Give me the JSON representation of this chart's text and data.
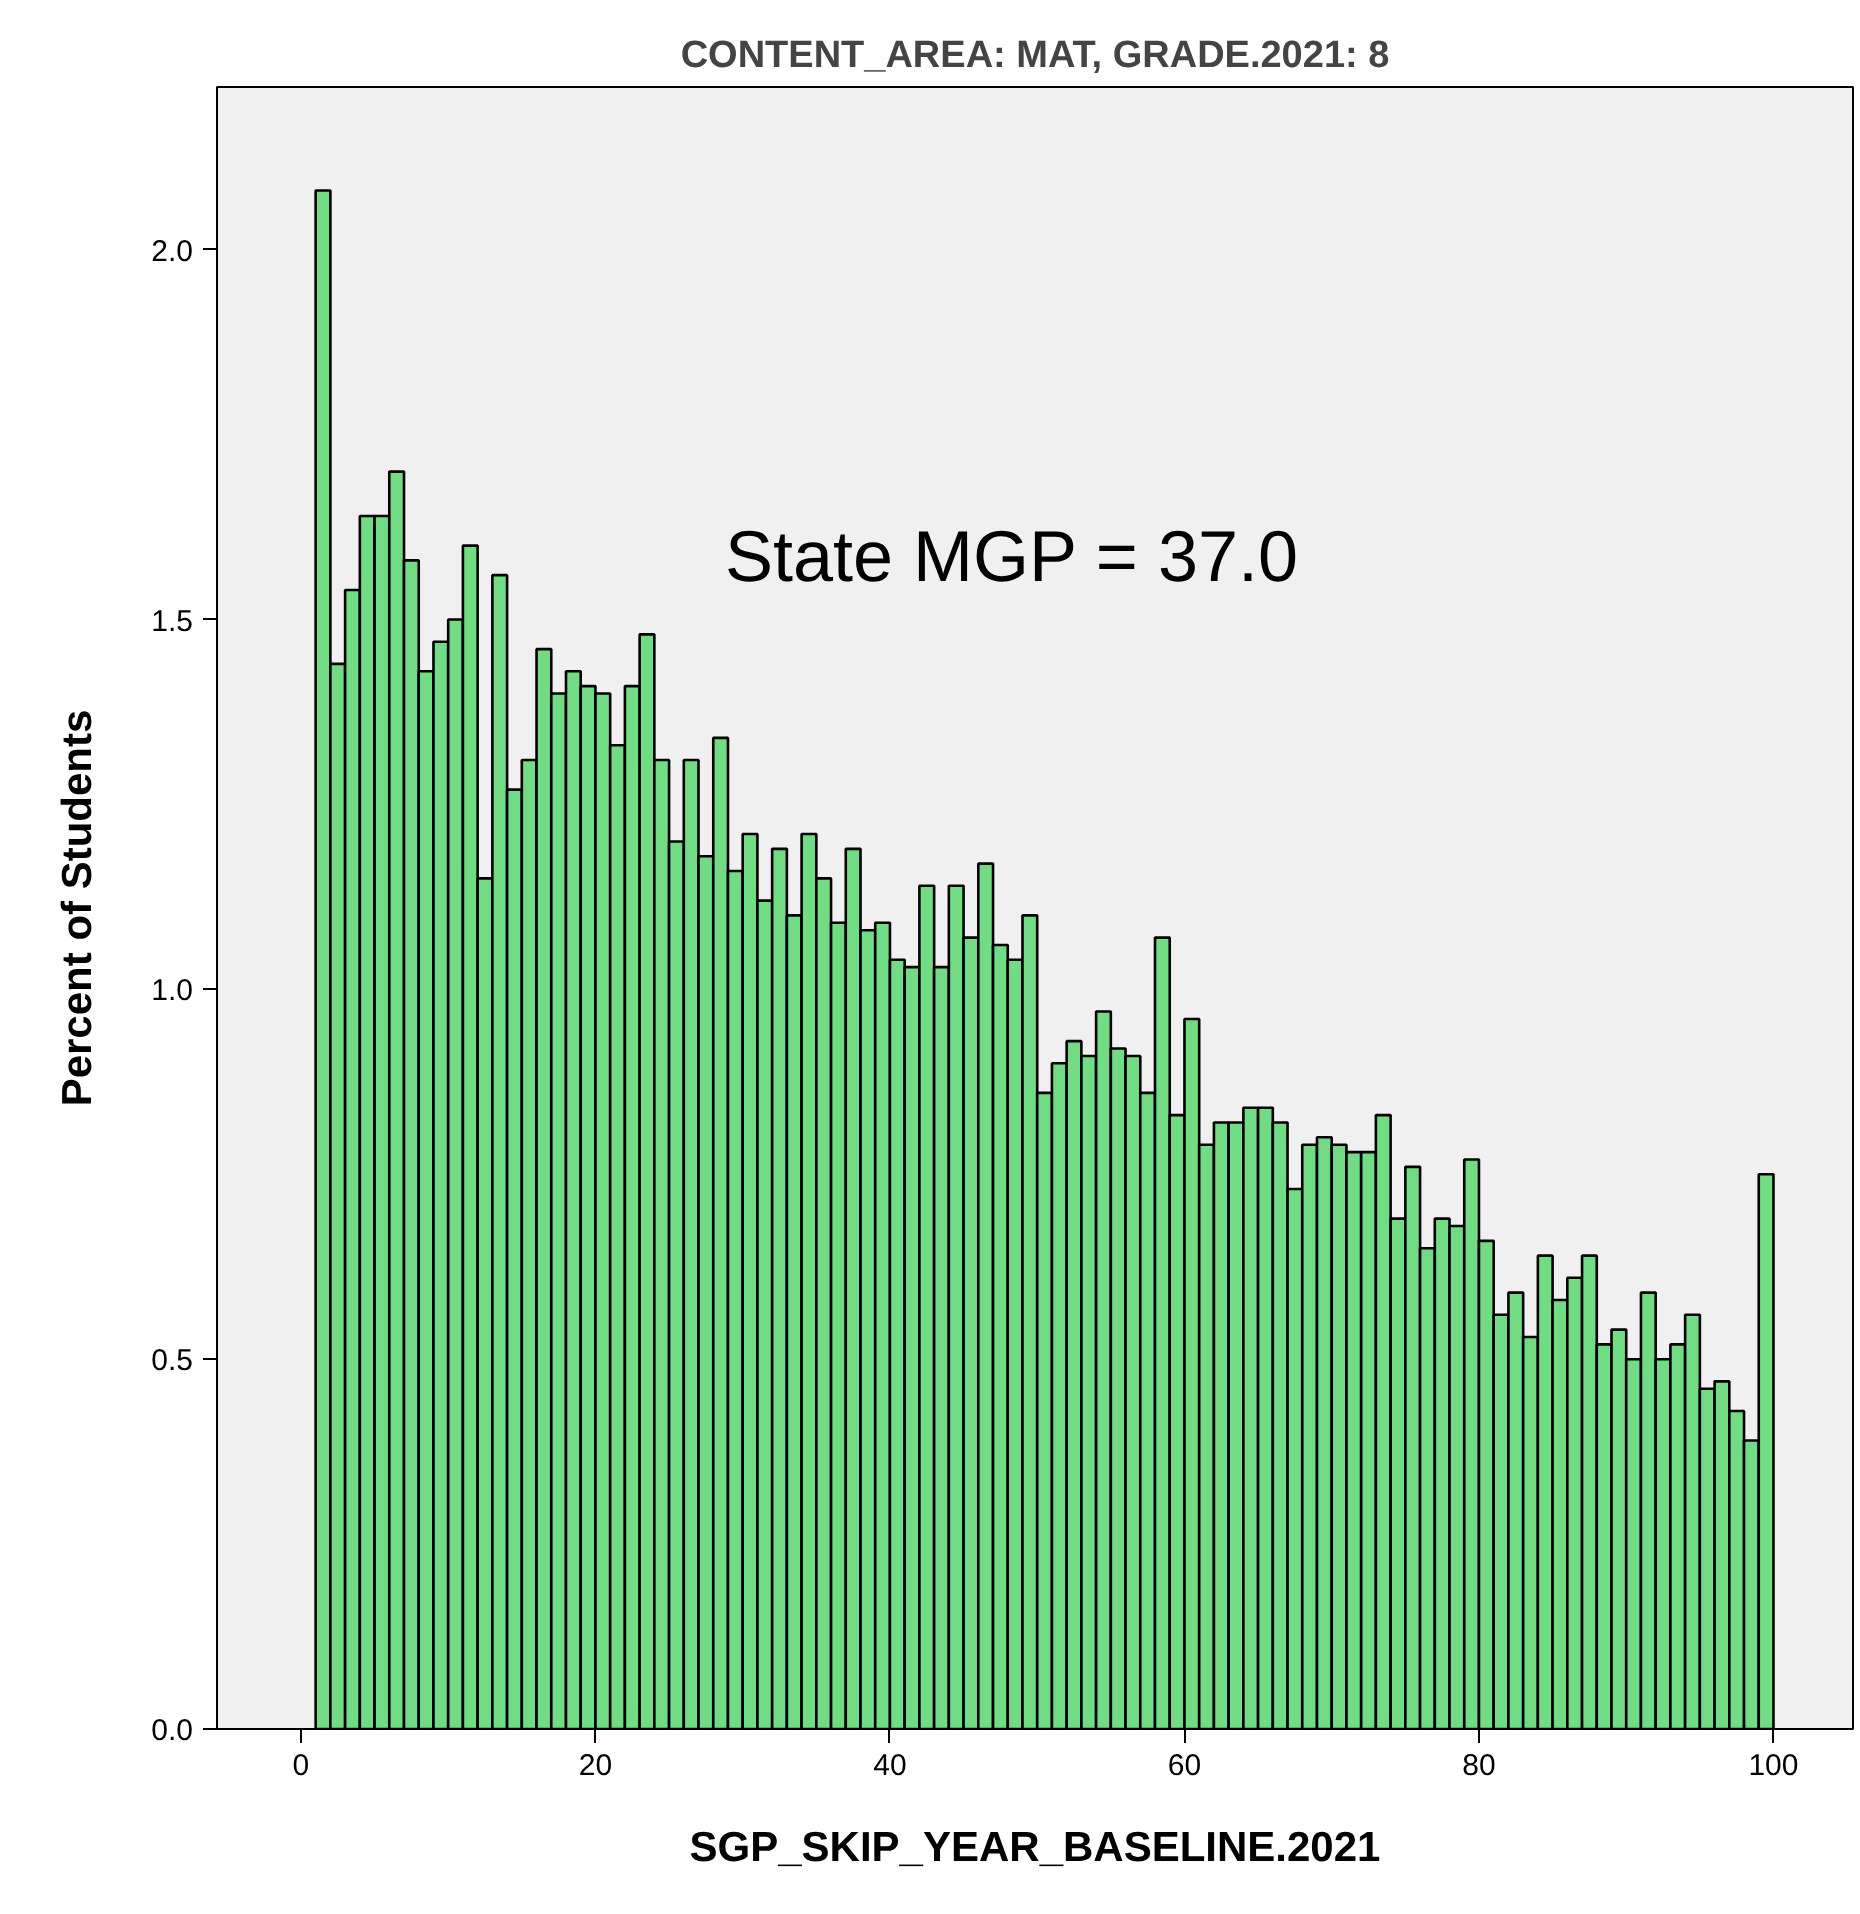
{
  "chart_data": {
    "type": "histogram",
    "title": "CONTENT_AREA: MAT, GRADE.2021: 8",
    "xlabel": "SGP_SKIP_YEAR_BASELINE.2021",
    "ylabel": "Percent of Students",
    "annotations": [
      "State MGP = 37.0"
    ],
    "bins": [
      1,
      2,
      3,
      4,
      5,
      6,
      7,
      8,
      9,
      10,
      11,
      12,
      13,
      14,
      15,
      16,
      17,
      18,
      19,
      20,
      21,
      22,
      23,
      24,
      25,
      26,
      27,
      28,
      29,
      30,
      31,
      32,
      33,
      34,
      35,
      36,
      37,
      38,
      39,
      40,
      41,
      42,
      43,
      44,
      45,
      46,
      47,
      48,
      49,
      50,
      51,
      52,
      53,
      54,
      55,
      56,
      57,
      58,
      59,
      60,
      61,
      62,
      63,
      64,
      65,
      66,
      67,
      68,
      69,
      70,
      71,
      72,
      73,
      74,
      75,
      76,
      77,
      78,
      79,
      80,
      81,
      82,
      83,
      84,
      85,
      86,
      87,
      88,
      89,
      90,
      91,
      92,
      93,
      94,
      95,
      96,
      97,
      98,
      99,
      100
    ],
    "values": [
      2.08,
      1.44,
      1.54,
      1.64,
      1.64,
      1.7,
      1.58,
      1.43,
      1.47,
      1.5,
      1.6,
      1.15,
      1.56,
      1.27,
      1.31,
      1.46,
      1.4,
      1.43,
      1.41,
      1.4,
      1.33,
      1.41,
      1.48,
      1.31,
      1.2,
      1.31,
      1.18,
      1.34,
      1.16,
      1.21,
      1.12,
      1.19,
      1.1,
      1.21,
      1.15,
      1.09,
      1.19,
      1.08,
      1.09,
      1.04,
      1.03,
      1.14,
      1.03,
      1.14,
      1.07,
      1.17,
      1.06,
      1.04,
      1.1,
      0.86,
      0.9,
      0.93,
      0.91,
      0.97,
      0.92,
      0.91,
      0.86,
      1.07,
      0.83,
      0.96,
      0.79,
      0.82,
      0.82,
      0.84,
      0.84,
      0.82,
      0.73,
      0.79,
      0.8,
      0.79,
      0.78,
      0.78,
      0.83,
      0.69,
      0.76,
      0.65,
      0.69,
      0.68,
      0.77,
      0.66,
      0.56,
      0.59,
      0.53,
      0.64,
      0.58,
      0.61,
      0.64,
      0.52,
      0.54,
      0.5,
      0.59,
      0.5,
      0.52,
      0.56,
      0.46,
      0.47,
      0.43,
      0.39,
      0.75
    ],
    "color": "#72dc84",
    "xlim": [
      -5.7,
      105.4
    ],
    "ylim": [
      0,
      2.22
    ],
    "xticks": [
      0,
      20,
      40,
      60,
      80,
      100
    ],
    "yticks": [
      {
        "value": 0,
        "label": "0.0"
      },
      {
        "value": 0.5,
        "label": "0.5"
      },
      {
        "value": 1,
        "label": "1.0"
      },
      {
        "value": 1.5,
        "label": "1.5"
      },
      {
        "value": 2,
        "label": "2.0"
      }
    ],
    "grid": false
  }
}
